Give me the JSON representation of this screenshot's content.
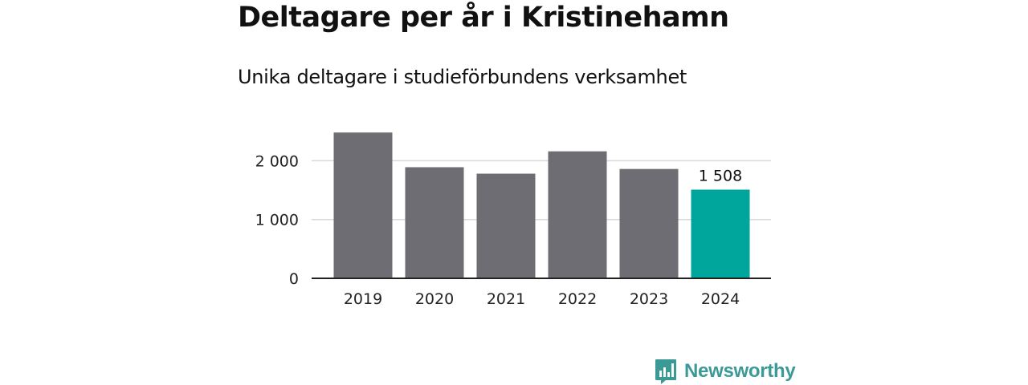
{
  "chart_data": {
    "type": "bar",
    "title": "Deltagare per år i Kristinehamn",
    "subtitle": "Unika deltagare i studieförbundens verksamhet",
    "xlabel": "",
    "ylabel": "",
    "categories": [
      "2019",
      "2020",
      "2021",
      "2022",
      "2023",
      "2024"
    ],
    "values": [
      2480,
      1890,
      1780,
      2160,
      1860,
      1508
    ],
    "ylim": [
      0,
      2500
    ],
    "yticks": [
      0,
      1000,
      2000
    ],
    "ytick_labels": [
      "0",
      "1 000",
      "2 000"
    ],
    "highlight_label": "1 508",
    "highlight_index": 5,
    "grid": true,
    "colors": {
      "bar": "#6e6d73",
      "highlight": "#00a59b",
      "grid": "#d8d8d8",
      "axis": "#222222"
    }
  },
  "branding": {
    "logo_text": "Newsworthy",
    "logo_icon": "bar-chart-bubble-icon"
  }
}
